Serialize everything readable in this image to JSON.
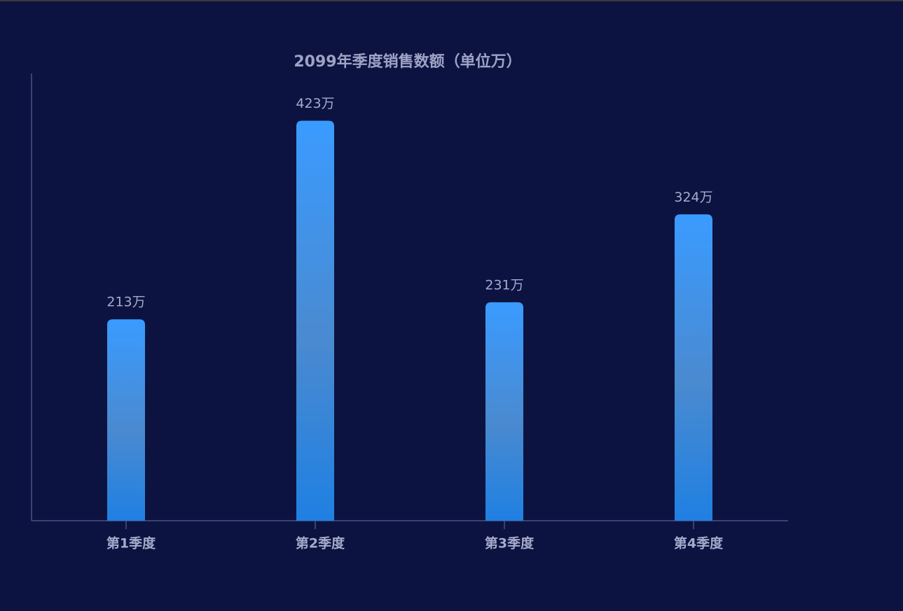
{
  "chart_data": {
    "type": "bar",
    "title": "2099年季度销售数额（单位万）",
    "categories": [
      "第1季度",
      "第2季度",
      "第3季度",
      "第4季度"
    ],
    "values": [
      213,
      423,
      231,
      324
    ],
    "value_labels": [
      "213万",
      "423万",
      "231万",
      "324万"
    ],
    "color": "#3a9bff",
    "ylim": [
      0,
      473
    ],
    "grid": false
  }
}
